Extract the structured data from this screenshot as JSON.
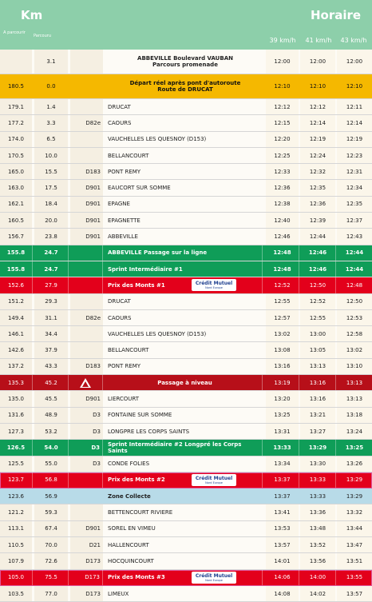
{
  "header": {
    "km_label": "Km",
    "horaire_label": "Horaire",
    "sub_parcouru": "A parcourir",
    "sub_parcouru2": "Parcouru",
    "speeds": [
      "39 km/h",
      "41 km/h",
      "43 km/h"
    ]
  },
  "rows": [
    {
      "km_left": "",
      "km_done": "3.1",
      "road": "",
      "place": "ABBEVILLE Boulevard VAUBAN",
      "place2": "Parcours promenade",
      "t1": "12:00",
      "t2": "12:00",
      "t3": "12:00",
      "style": "plain tall",
      "center": true
    },
    {
      "km_left": "180.5",
      "km_done": "0.0",
      "road": "",
      "place": "Départ réel après pont d'autoroute",
      "place2": "Route de DRUCAT",
      "t1": "12:10",
      "t2": "12:10",
      "t3": "12:10",
      "style": "yellow tall",
      "center": true
    },
    {
      "km_left": "179.1",
      "km_done": "1.4",
      "road": "",
      "place": "DRUCAT",
      "t1": "12:12",
      "t2": "12:12",
      "t3": "12:11",
      "style": "plain"
    },
    {
      "km_left": "177.2",
      "km_done": "3.3",
      "road": "D82e",
      "place": "CAOURS",
      "t1": "12:15",
      "t2": "12:14",
      "t3": "12:14",
      "style": "plain"
    },
    {
      "km_left": "174.0",
      "km_done": "6.5",
      "road": "",
      "place": "VAUCHELLES LES QUESNOY (D153)",
      "t1": "12:20",
      "t2": "12:19",
      "t3": "12:19",
      "style": "plain"
    },
    {
      "km_left": "170.5",
      "km_done": "10.0",
      "road": "",
      "place": "BELLANCOURT",
      "t1": "12:25",
      "t2": "12:24",
      "t3": "12:23",
      "style": "plain"
    },
    {
      "km_left": "165.0",
      "km_done": "15.5",
      "road": "D183",
      "place": "PONT REMY",
      "t1": "12:33",
      "t2": "12:32",
      "t3": "12:31",
      "style": "plain"
    },
    {
      "km_left": "163.0",
      "km_done": "17.5",
      "road": "D901",
      "place": "EAUCORT SUR SOMME",
      "t1": "12:36",
      "t2": "12:35",
      "t3": "12:34",
      "style": "plain"
    },
    {
      "km_left": "162.1",
      "km_done": "18.4",
      "road": "D901",
      "place": "EPAGNE",
      "t1": "12:38",
      "t2": "12:36",
      "t3": "12:35",
      "style": "plain"
    },
    {
      "km_left": "160.5",
      "km_done": "20.0",
      "road": "D901",
      "place": "EPAGNETTE",
      "t1": "12:40",
      "t2": "12:39",
      "t3": "12:37",
      "style": "plain"
    },
    {
      "km_left": "156.7",
      "km_done": "23.8",
      "road": "D901",
      "place": "ABBEVILLE",
      "t1": "12:46",
      "t2": "12:44",
      "t3": "12:43",
      "style": "plain"
    },
    {
      "km_left": "155.8",
      "km_done": "24.7",
      "road": "",
      "place": "ABBEVILLE Passage sur la ligne",
      "t1": "12:48",
      "t2": "12:46",
      "t3": "12:44",
      "style": "green"
    },
    {
      "km_left": "155.8",
      "km_done": "24.7",
      "road": "",
      "place": "Sprint Intermédiaire #1",
      "t1": "12:48",
      "t2": "12:46",
      "t3": "12:44",
      "style": "green"
    },
    {
      "km_left": "152.6",
      "km_done": "27.9",
      "road": "",
      "place": "Prix des Monts #1",
      "t1": "12:52",
      "t2": "12:50",
      "t3": "12:48",
      "style": "red",
      "sponsor": true
    },
    {
      "km_left": "151.2",
      "km_done": "29.3",
      "road": "",
      "place": "DRUCAT",
      "t1": "12:55",
      "t2": "12:52",
      "t3": "12:50",
      "style": "plain"
    },
    {
      "km_left": "149.4",
      "km_done": "31.1",
      "road": "D82e",
      "place": "CAOURS",
      "t1": "12:57",
      "t2": "12:55",
      "t3": "12:53",
      "style": "plain"
    },
    {
      "km_left": "146.1",
      "km_done": "34.4",
      "road": "",
      "place": "VAUCHELLES LES QUESNOY (D153)",
      "t1": "13:02",
      "t2": "13:00",
      "t3": "12:58",
      "style": "plain"
    },
    {
      "km_left": "142.6",
      "km_done": "37.9",
      "road": "",
      "place": "BELLANCOURT",
      "t1": "13:08",
      "t2": "13:05",
      "t3": "13:02",
      "style": "plain"
    },
    {
      "km_left": "137.2",
      "km_done": "43.3",
      "road": "D183",
      "place": "PONT REMY",
      "t1": "13:16",
      "t2": "13:13",
      "t3": "13:10",
      "style": "plain"
    },
    {
      "km_left": "135.3",
      "km_done": "45.2",
      "road": "",
      "place": "Passage à niveau",
      "t1": "13:19",
      "t2": "13:16",
      "t3": "13:13",
      "style": "dred",
      "warn": true,
      "center": true
    },
    {
      "km_left": "135.0",
      "km_done": "45.5",
      "road": "D901",
      "place": "LIERCOURT",
      "t1": "13:20",
      "t2": "13:16",
      "t3": "13:13",
      "style": "plain"
    },
    {
      "km_left": "131.6",
      "km_done": "48.9",
      "road": "D3",
      "place": "FONTAINE SUR SOMME",
      "t1": "13:25",
      "t2": "13:21",
      "t3": "13:18",
      "style": "plain"
    },
    {
      "km_left": "127.3",
      "km_done": "53.2",
      "road": "D3",
      "place": "LONGPRE LES CORPS SAINTS",
      "t1": "13:31",
      "t2": "13:27",
      "t3": "13:24",
      "style": "plain"
    },
    {
      "km_left": "126.5",
      "km_done": "54.0",
      "road": "D3",
      "place": "Sprint Intermédiaire #2 Longpré les Corps Saints",
      "t1": "13:33",
      "t2": "13:29",
      "t3": "13:25",
      "style": "green"
    },
    {
      "km_left": "125.5",
      "km_done": "55.0",
      "road": "D3",
      "place": "CONDE FOLIES",
      "t1": "13:34",
      "t2": "13:30",
      "t3": "13:26",
      "style": "plain"
    },
    {
      "km_left": "123.7",
      "km_done": "56.8",
      "road": "",
      "place": "Prix des Monts #2",
      "t1": "13:37",
      "t2": "13:33",
      "t3": "13:29",
      "style": "red pink",
      "sponsor": true
    },
    {
      "km_left": "123.6",
      "km_done": "56.9",
      "road": "",
      "place": "Zone Collecte",
      "t1": "13:37",
      "t2": "13:33",
      "t3": "13:29",
      "style": "blue"
    },
    {
      "km_left": "121.2",
      "km_done": "59.3",
      "road": "",
      "place": "BETTENCOURT RIVIERE",
      "t1": "13:41",
      "t2": "13:36",
      "t3": "13:32",
      "style": "plain"
    },
    {
      "km_left": "113.1",
      "km_done": "67.4",
      "road": "D901",
      "place": "SOREL EN VIMEU",
      "t1": "13:53",
      "t2": "13:48",
      "t3": "13:44",
      "style": "plain"
    },
    {
      "km_left": "110.5",
      "km_done": "70.0",
      "road": "D21",
      "place": "HALLENCOURT",
      "t1": "13:57",
      "t2": "13:52",
      "t3": "13:47",
      "style": "plain"
    },
    {
      "km_left": "107.9",
      "km_done": "72.6",
      "road": "D173",
      "place": "HOCQUINCOURT",
      "t1": "14:01",
      "t2": "13:56",
      "t3": "13:51",
      "style": "plain"
    },
    {
      "km_left": "105.0",
      "km_done": "75.5",
      "road": "D173",
      "place": "Prix des Monts #3",
      "t1": "14:06",
      "t2": "14:00",
      "t3": "13:55",
      "style": "red pink",
      "sponsor": true
    },
    {
      "km_left": "103.5",
      "km_done": "77.0",
      "road": "D173",
      "place": "LIMEUX",
      "t1": "14:08",
      "t2": "14:02",
      "t3": "13:57",
      "style": "plain"
    }
  ],
  "sponsor": {
    "line1": "Crédit Mutuel",
    "line2": "Nord Europe"
  },
  "icons": {
    "warning": "warning-triangle-icon"
  }
}
